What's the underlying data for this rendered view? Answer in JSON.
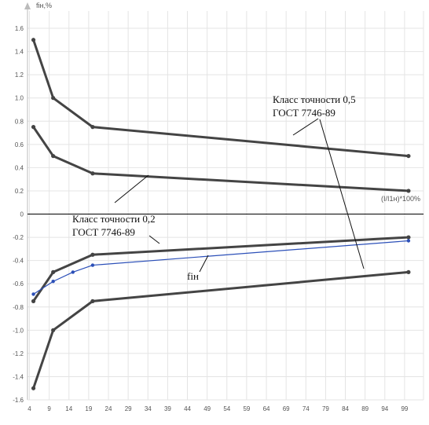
{
  "chart_data": {
    "type": "line",
    "ylabel": "fін,%",
    "xlabel": "(I/I1н)*100%",
    "xlim": [
      4,
      101
    ],
    "ylim": [
      -1.6,
      1.6
    ],
    "x_ticks": [
      4,
      9,
      14,
      19,
      24,
      29,
      34,
      39,
      44,
      49,
      54,
      59,
      64,
      69,
      74,
      79,
      84,
      89,
      94,
      99
    ],
    "y_ticks": [
      1.6,
      1.4,
      1.2,
      1.0,
      0.8,
      0.6,
      0.4,
      0.2,
      0,
      -0.2,
      -0.4,
      -0.6,
      -0.8,
      -1.0,
      -1.2,
      -1.4,
      -1.6
    ],
    "grid": true,
    "colors": {
      "limit": "#444444",
      "fin": "#2b4fb8",
      "grid": "#e4e4e4",
      "axis": "#000000"
    },
    "series": [
      {
        "x": [
          5,
          10,
          20,
          100
        ],
        "values": [
          1.5,
          1.0,
          0.75,
          0.5
        ]
      },
      {
        "x": [
          5,
          10,
          20,
          100
        ],
        "values": [
          0.75,
          0.5,
          0.35,
          0.2
        ]
      },
      {
        "x": [
          5,
          10,
          20,
          100
        ],
        "values": [
          -0.75,
          -0.5,
          -0.35,
          -0.2
        ]
      },
      {
        "x": [
          5,
          10,
          20,
          100
        ],
        "values": [
          -1.5,
          -1.0,
          -0.75,
          -0.5
        ]
      },
      {
        "name": "fін",
        "x": [
          5,
          10,
          15,
          20,
          100
        ],
        "values": [
          -0.69,
          -0.58,
          -0.5,
          -0.44,
          -0.23
        ]
      }
    ],
    "annotations": [
      {
        "lines": [
          "Класс точности 0,5",
          "ГОСТ 7746-89"
        ]
      },
      {
        "lines": [
          "Класс точности 0,2",
          "ГОСТ 7746-89"
        ]
      },
      {
        "lines": [
          "fін"
        ]
      }
    ]
  }
}
